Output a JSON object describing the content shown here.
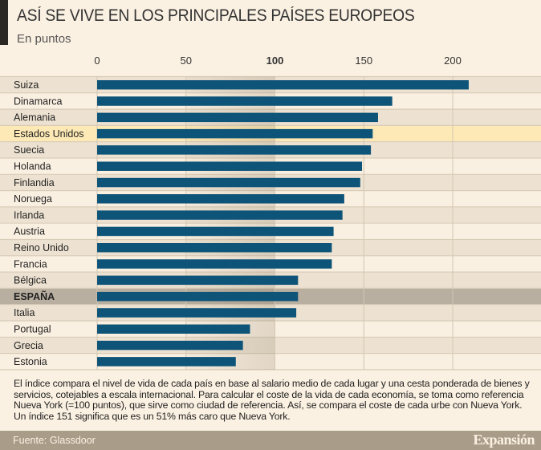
{
  "chart_data": {
    "type": "bar",
    "orientation": "horizontal",
    "title": "ASÍ SE VIVE EN LOS PRINCIPALES PAÍSES EUROPEOS",
    "subtitle": "En puntos",
    "categories": [
      "Suiza",
      "Dinamarca",
      "Alemania",
      "Estados Unidos",
      "Suecia",
      "Holanda",
      "Finlandia",
      "Noruega",
      "Irlanda",
      "Austria",
      "Reino Unido",
      "Francia",
      "Bélgica",
      "ESPAÑA",
      "Italia",
      "Portugal",
      "Grecia",
      "Estonia"
    ],
    "values": [
      209,
      166,
      158,
      155,
      154,
      149,
      148,
      139,
      138,
      133,
      132,
      132,
      113,
      113,
      112,
      86,
      82,
      78
    ],
    "highlight": {
      "Estados Unidos": "#fde9b5",
      "ESPAÑA": "#b9afa0"
    },
    "xlim": [
      0,
      230
    ],
    "ticks": [
      "0",
      "50",
      "100",
      "150",
      "200"
    ],
    "reference_value": 100,
    "grid": true,
    "bar_color": "#0e5478"
  },
  "note": "El índice compara el nivel de vida de cada país en base al salario medio de cada lugar y una cesta ponderada de bienes y servicios, cotejables a escala internacional. Para calcular el coste de la vida de cada economía, se toma como referencia Nueva York (=100 puntos), que sirve como ciudad de referencia. Así, se compara el coste de cada urbe con Nueva York. Un índice 151 significa que es un 51% más caro que Nueva York.",
  "footer": {
    "source": "Fuente: Glassdoor",
    "logo": "Expansión"
  }
}
